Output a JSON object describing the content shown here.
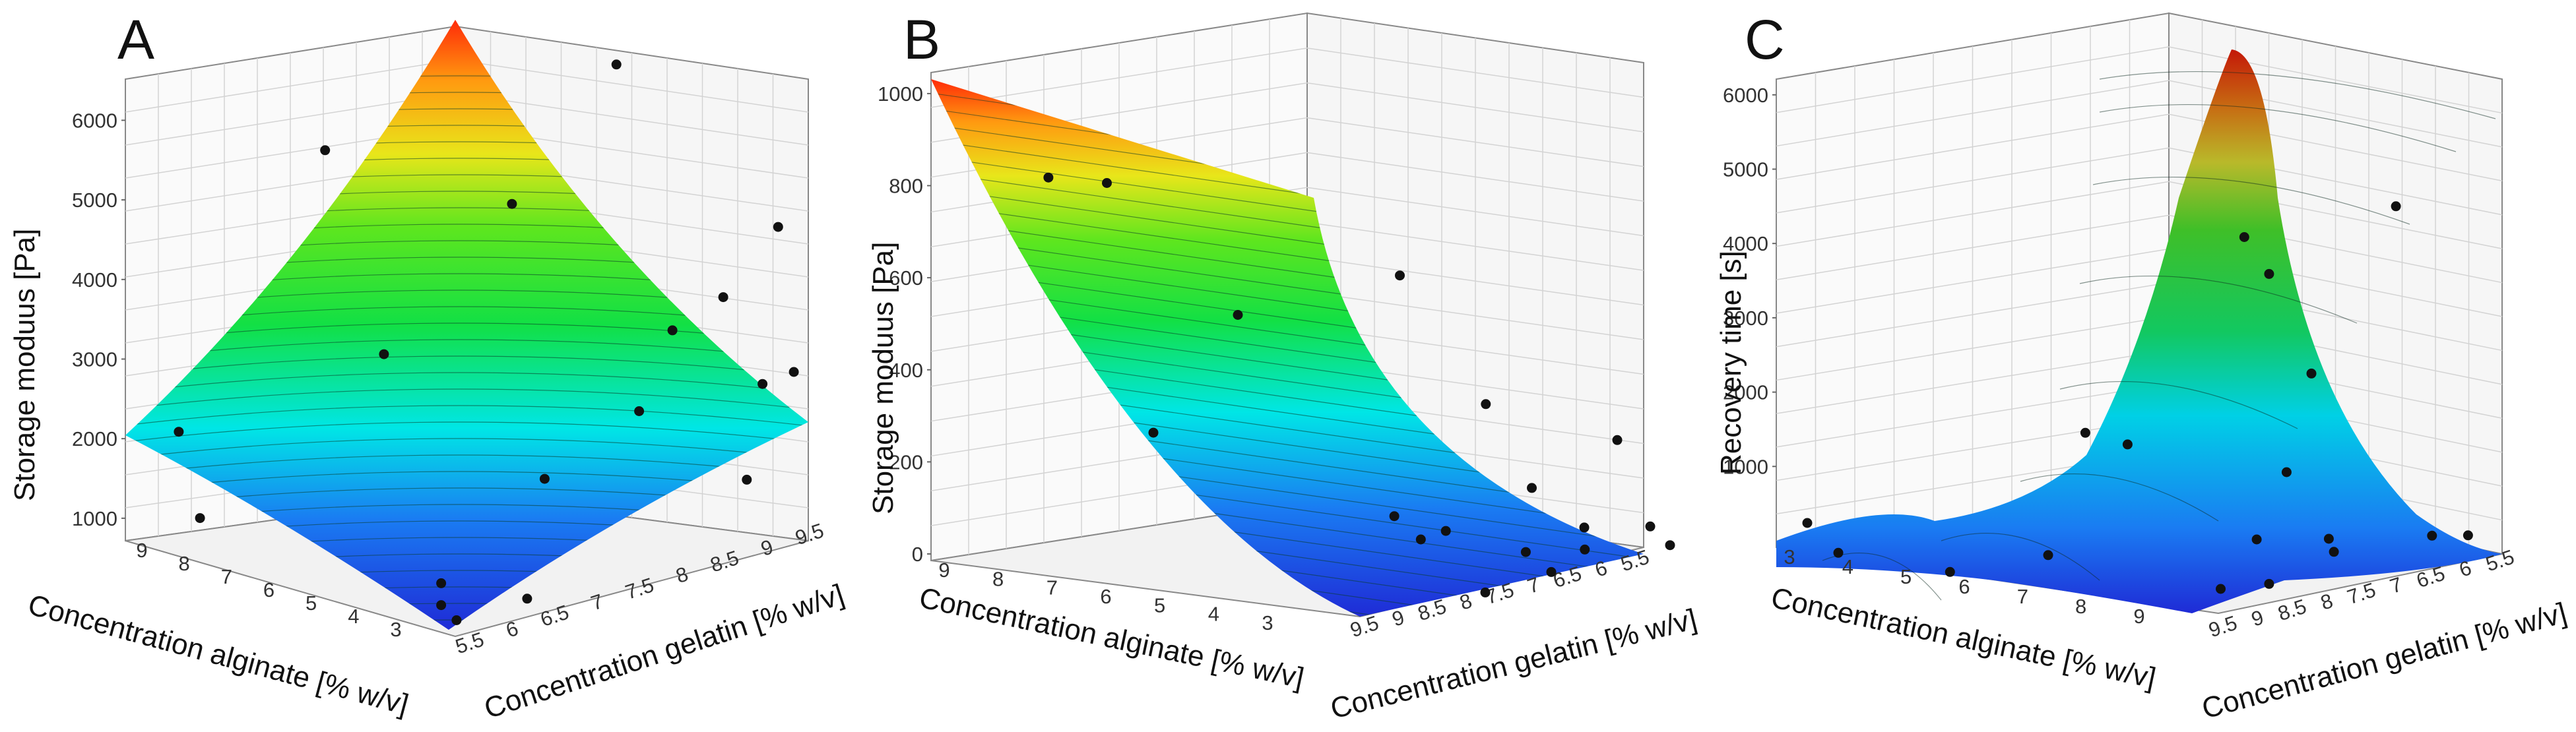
{
  "colors": {
    "surface_stops": [
      "#1f2bd6",
      "#1a7bf2",
      "#00e6e6",
      "#12e045",
      "#5ee61e",
      "#e8e61a",
      "#ff9a10",
      "#ff2a08"
    ],
    "grid": "#cfcfcf",
    "frame": "#888888",
    "point": "#111111"
  },
  "chart_data": [
    {
      "panel": "A",
      "type": "scatter",
      "title": "",
      "zlabel": "Storage moduus [Pa]",
      "xlabel": "Concentration alginate [% w/v]",
      "ylabel": "Concentration gelatin [% w/v]",
      "z_ticks": [
        "1000",
        "2000",
        "3000",
        "4000",
        "5000",
        "6000"
      ],
      "x_ticks": [
        "9",
        "8",
        "7",
        "6",
        "5",
        "4",
        "3"
      ],
      "y_ticks": [
        "5.5",
        "6",
        "6.5",
        "7",
        "7.5",
        "8",
        "8.5",
        "9",
        "9.5"
      ],
      "zlim": [
        800,
        6600
      ],
      "points": [
        {
          "alginate": 8.7,
          "gelatin": 5.8,
          "value": 2100
        },
        {
          "alginate": 7.9,
          "gelatin": 5.5,
          "value": 1300
        },
        {
          "alginate": 6.8,
          "gelatin": 6.5,
          "value": 5450
        },
        {
          "alginate": 5.0,
          "gelatin": 6.0,
          "value": 3500
        },
        {
          "alginate": 4.0,
          "gelatin": 7.0,
          "value": 5150
        },
        {
          "alginate": 3.5,
          "gelatin": 8.0,
          "value": 6600
        },
        {
          "alginate": 3.2,
          "gelatin": 8.5,
          "value": 3500
        },
        {
          "alginate": 3.1,
          "gelatin": 8.0,
          "value": 2700
        },
        {
          "alginate": 3.4,
          "gelatin": 7.0,
          "value": 2100
        },
        {
          "alginate": 3.9,
          "gelatin": 6.0,
          "value": 1050
        },
        {
          "alginate": 3.9,
          "gelatin": 6.0,
          "value": 800
        },
        {
          "alginate": 3.0,
          "gelatin": 5.6,
          "value": 850
        },
        {
          "alginate": 3.0,
          "gelatin": 9.0,
          "value": 3800
        },
        {
          "alginate": 3.0,
          "gelatin": 9.5,
          "value": 2700
        },
        {
          "alginate": 3.0,
          "gelatin": 6.5,
          "value": 900
        },
        {
          "alginate": 3.0,
          "gelatin": 9.7,
          "value": 4450
        },
        {
          "alginate": 3.0,
          "gelatin": 9.3,
          "value": 1650
        },
        {
          "alginate": 3.0,
          "gelatin": 9.9,
          "value": 2750
        }
      ]
    },
    {
      "panel": "B",
      "type": "scatter",
      "title": "",
      "zlabel": "Storage moduus [Pa]",
      "xlabel": "Concentration alginate [% w/v]",
      "ylabel": "Concentration gelatin [% w/v]",
      "z_ticks": [
        "0",
        "200",
        "400",
        "600",
        "800",
        "1000"
      ],
      "x_ticks": [
        "9",
        "8",
        "7",
        "6",
        "5",
        "4",
        "3"
      ],
      "y_ticks": [
        "9.5",
        "9",
        "8.5",
        "8",
        "7.5",
        "7",
        "6.5",
        "6",
        "5.5"
      ],
      "zlim": [
        0,
        1060
      ],
      "points": [
        {
          "alginate": 8.2,
          "gelatin": 9.5,
          "value": 920
        },
        {
          "alginate": 7.3,
          "gelatin": 9.5,
          "value": 925
        },
        {
          "alginate": 7.6,
          "gelatin": 8.5,
          "value": 300
        },
        {
          "alginate": 6.3,
          "gelatin": 8.5,
          "value": 600
        },
        {
          "alginate": 4.4,
          "gelatin": 8.0,
          "value": 150
        },
        {
          "alginate": 4.5,
          "gelatin": 7.5,
          "value": 75
        },
        {
          "alginate": 3.3,
          "gelatin": 9.0,
          "value": 770
        },
        {
          "alginate": 3.5,
          "gelatin": 7.5,
          "value": 410
        },
        {
          "alginate": 3.3,
          "gelatin": 7.0,
          "value": 200
        },
        {
          "alginate": 3.9,
          "gelatin": 6.5,
          "value": 20
        },
        {
          "alginate": 3.5,
          "gelatin": 6.0,
          "value": 15
        },
        {
          "alginate": 3.1,
          "gelatin": 8.5,
          "value": 160
        },
        {
          "alginate": 3.0,
          "gelatin": 8.0,
          "value": 0
        },
        {
          "alginate": 3.0,
          "gelatin": 7.0,
          "value": 10
        },
        {
          "alginate": 3.0,
          "gelatin": 6.5,
          "value": 95
        },
        {
          "alginate": 3.0,
          "gelatin": 6.0,
          "value": 280
        },
        {
          "alginate": 3.0,
          "gelatin": 5.5,
          "value": 60
        },
        {
          "alginate": 3.0,
          "gelatin": 5.2,
          "value": 5
        }
      ]
    },
    {
      "panel": "C",
      "type": "scatter",
      "title": "",
      "zlabel": "Recovery time [s]",
      "xlabel": "Concentration alginate [% w/v]",
      "ylabel": "Concentration gelatin [% w/v]",
      "z_ticks": [
        "1000",
        "2000",
        "3000",
        "4000",
        "5000",
        "6000"
      ],
      "x_ticks": [
        "3",
        "4",
        "5",
        "6",
        "7",
        "8",
        "9"
      ],
      "y_ticks": [
        "9.5",
        "9",
        "8.5",
        "8",
        "7.5",
        "7",
        "6.5",
        "6",
        "5.5"
      ],
      "zlim": [
        0,
        6300
      ],
      "points": [
        {
          "alginate": 3.5,
          "gelatin": 9.5,
          "value": 400
        },
        {
          "alginate": 4.0,
          "gelatin": 9.5,
          "value": 60
        },
        {
          "alginate": 5.8,
          "gelatin": 9.5,
          "value": 40
        },
        {
          "alginate": 6.8,
          "gelatin": 9.0,
          "value": 300
        },
        {
          "alginate": 7.5,
          "gelatin": 8.5,
          "value": 1800
        },
        {
          "alginate": 7.4,
          "gelatin": 9.0,
          "value": 2050
        },
        {
          "alginate": 8.8,
          "gelatin": 8.0,
          "value": 4700
        },
        {
          "alginate": 9.2,
          "gelatin": 8.0,
          "value": 4250
        },
        {
          "alginate": 9.3,
          "gelatin": 7.5,
          "value": 2800
        },
        {
          "alginate": 8.9,
          "gelatin": 7.5,
          "value": 1400
        },
        {
          "alginate": 9.0,
          "gelatin": 7.0,
          "value": 400
        },
        {
          "alginate": 8.5,
          "gelatin": 6.5,
          "value": 50
        },
        {
          "alginate": 9.0,
          "gelatin": 8.5,
          "value": 30
        },
        {
          "alginate": 9.2,
          "gelatin": 8.0,
          "value": 20
        },
        {
          "alginate": 9.5,
          "gelatin": 6.5,
          "value": 4900
        },
        {
          "alginate": 9.5,
          "gelatin": 6.0,
          "value": 300
        },
        {
          "alginate": 9.5,
          "gelatin": 5.5,
          "value": 200
        },
        {
          "alginate": 9.0,
          "gelatin": 8.0,
          "value": 600
        }
      ]
    }
  ],
  "panels": [
    {
      "letter": "A"
    },
    {
      "letter": "B"
    },
    {
      "letter": "C"
    }
  ]
}
